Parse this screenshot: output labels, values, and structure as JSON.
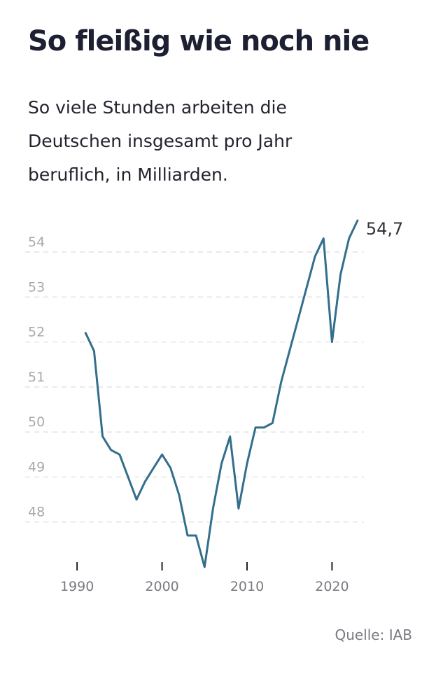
{
  "title": "So fleißig wie noch nie",
  "subtitle": "So viele Stunden arbeiten die Deutschen insgesamt pro Jahr beruflich, in Milliarden.",
  "source": "Quelle: IAB",
  "colors": {
    "line": "#336e8c",
    "grid": "#dcdcdc",
    "tick_label": "#a9a9ad",
    "x_label": "#7a7a80",
    "end_label": "#333339"
  },
  "chart_data": {
    "type": "line",
    "x": [
      1991,
      1992,
      1993,
      1994,
      1995,
      1996,
      1997,
      1998,
      1999,
      2000,
      2001,
      2002,
      2003,
      2004,
      2005,
      2006,
      2007,
      2008,
      2009,
      2010,
      2011,
      2012,
      2013,
      2014,
      2015,
      2016,
      2017,
      2018,
      2019,
      2020,
      2021,
      2022,
      2023
    ],
    "series": [
      {
        "values": [
          52.2,
          51.8,
          49.9,
          49.6,
          49.5,
          49.0,
          48.5,
          48.9,
          49.2,
          49.5,
          49.2,
          48.6,
          47.7,
          47.7,
          47.0,
          48.3,
          49.3,
          49.9,
          48.3,
          49.3,
          50.1,
          50.1,
          50.2,
          51.1,
          51.8,
          52.5,
          53.2,
          53.9,
          54.3,
          52.0,
          53.5,
          54.3,
          54.7
        ]
      }
    ],
    "end_label": "54,7",
    "y_ticks": [
      48,
      49,
      50,
      51,
      52,
      53,
      54
    ],
    "y_tick_labels": [
      "48",
      "49",
      "50",
      "51",
      "52",
      "53",
      "54"
    ],
    "x_ticks": [
      1990,
      2000,
      2010,
      2020
    ],
    "x_tick_labels": [
      "1990",
      "2000",
      "2010",
      "2020"
    ],
    "xlim": [
      1989,
      2024
    ],
    "ylim": [
      47,
      54.7
    ],
    "grid": true,
    "legend": "none"
  }
}
